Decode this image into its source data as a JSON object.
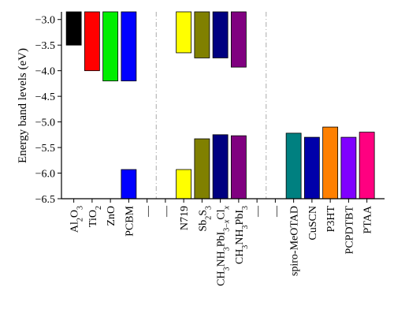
{
  "chart_data": {
    "type": "bar",
    "ylabel": "Energy band levels (eV)",
    "ylim": [
      -6.5,
      -2.85
    ],
    "yticks": [
      -3.0,
      -3.5,
      -4.0,
      -4.5,
      -5.0,
      -5.5,
      -6.0,
      -6.5
    ],
    "ytick_labels": [
      "−3.0",
      "−3.5",
      "−4.0",
      "−4.5",
      "−5.0",
      "−5.5",
      "−6.0",
      "−6.5"
    ],
    "categories": [
      {
        "label": "Al2O3",
        "parts": [
          {
            "t": "Al"
          },
          {
            "t": "2",
            "s": "sub"
          },
          {
            "t": "O"
          },
          {
            "t": "3",
            "s": "sub"
          }
        ]
      },
      {
        "label": "TiO2",
        "parts": [
          {
            "t": "TiO"
          },
          {
            "t": "2",
            "s": "sub"
          }
        ]
      },
      {
        "label": "ZnO",
        "parts": [
          {
            "t": "ZnO"
          }
        ]
      },
      {
        "label": "PCBM",
        "parts": [
          {
            "t": "PCBM"
          }
        ]
      },
      {
        "label": "—",
        "parts": [
          {
            "t": "—"
          }
        ]
      },
      {
        "label": "—",
        "parts": [
          {
            "t": "—"
          }
        ]
      },
      {
        "label": "N719",
        "parts": [
          {
            "t": "N719"
          }
        ]
      },
      {
        "label": "Sb2S3",
        "parts": [
          {
            "t": "Sb"
          },
          {
            "t": "2",
            "s": "sub"
          },
          {
            "t": "S"
          },
          {
            "t": "3",
            "s": "sub"
          }
        ]
      },
      {
        "label": "CH3NH3PbI3−xClx",
        "parts": [
          {
            "t": "CH"
          },
          {
            "t": "3",
            "s": "sub"
          },
          {
            "t": "NH"
          },
          {
            "t": "3",
            "s": "sub"
          },
          {
            "t": "PbI"
          },
          {
            "t": "3−",
            "s": "sub"
          },
          {
            "t": "x",
            "s": "subit"
          },
          {
            "t": "Cl"
          },
          {
            "t": "x",
            "s": "subit"
          }
        ]
      },
      {
        "label": "CH3NH3PbI3",
        "parts": [
          {
            "t": "CH"
          },
          {
            "t": "3",
            "s": "sub"
          },
          {
            "t": "NH"
          },
          {
            "t": "3",
            "s": "sub"
          },
          {
            "t": "PbI"
          },
          {
            "t": "3",
            "s": "sub"
          }
        ]
      },
      {
        "label": "—",
        "parts": [
          {
            "t": "—"
          }
        ]
      },
      {
        "label": "—",
        "parts": [
          {
            "t": "—"
          }
        ]
      },
      {
        "label": "spiro-MeOTAD",
        "parts": [
          {
            "t": "spiro-MeOTAD"
          }
        ]
      },
      {
        "label": "CuSCN",
        "parts": [
          {
            "t": "CuSCN"
          }
        ]
      },
      {
        "label": "P3HT",
        "parts": [
          {
            "t": "P3HT"
          }
        ]
      },
      {
        "label": "PCPDTBT",
        "parts": [
          {
            "t": "PCPDTBT"
          }
        ]
      },
      {
        "label": "PTAA",
        "parts": [
          {
            "t": "PTAA"
          }
        ]
      }
    ],
    "bars": [
      {
        "category_index": 0,
        "bottom": -3.5,
        "top": -2.85,
        "color": "#000000"
      },
      {
        "category_index": 1,
        "bottom": -4.0,
        "top": -2.85,
        "color": "#ff0000"
      },
      {
        "category_index": 2,
        "bottom": -4.2,
        "top": -2.85,
        "color": "#00ee00"
      },
      {
        "category_index": 3,
        "bottom": -4.2,
        "top": -2.85,
        "color": "#0000ff"
      },
      {
        "category_index": 3,
        "bottom": -6.5,
        "top": -5.93,
        "color": "#0000ff"
      },
      {
        "category_index": 6,
        "bottom": -6.5,
        "top": -5.93,
        "color": "#ffff00"
      },
      {
        "category_index": 6,
        "bottom": -3.65,
        "top": -2.85,
        "color": "#ffff00"
      },
      {
        "category_index": 7,
        "bottom": -3.75,
        "top": -2.85,
        "color": "#808000"
      },
      {
        "category_index": 7,
        "bottom": -6.5,
        "top": -5.33,
        "color": "#808000"
      },
      {
        "category_index": 8,
        "bottom": -3.75,
        "top": -2.85,
        "color": "#000080"
      },
      {
        "category_index": 8,
        "bottom": -6.5,
        "top": -5.25,
        "color": "#000080"
      },
      {
        "category_index": 9,
        "bottom": -3.93,
        "top": -2.85,
        "color": "#800080"
      },
      {
        "category_index": 9,
        "bottom": -6.5,
        "top": -5.27,
        "color": "#800080"
      },
      {
        "category_index": 12,
        "bottom": -6.5,
        "top": -5.22,
        "color": "#008080"
      },
      {
        "category_index": 13,
        "bottom": -6.5,
        "top": -5.3,
        "color": "#0000aa"
      },
      {
        "category_index": 14,
        "bottom": -6.5,
        "top": -5.1,
        "color": "#ff8000"
      },
      {
        "category_index": 15,
        "bottom": -6.5,
        "top": -5.3,
        "color": "#8000ff"
      },
      {
        "category_index": 16,
        "bottom": -6.5,
        "top": -5.2,
        "color": "#ff0080"
      }
    ],
    "separators_after_category": [
      4.5,
      10.5
    ],
    "grid": false,
    "legend": "none"
  }
}
